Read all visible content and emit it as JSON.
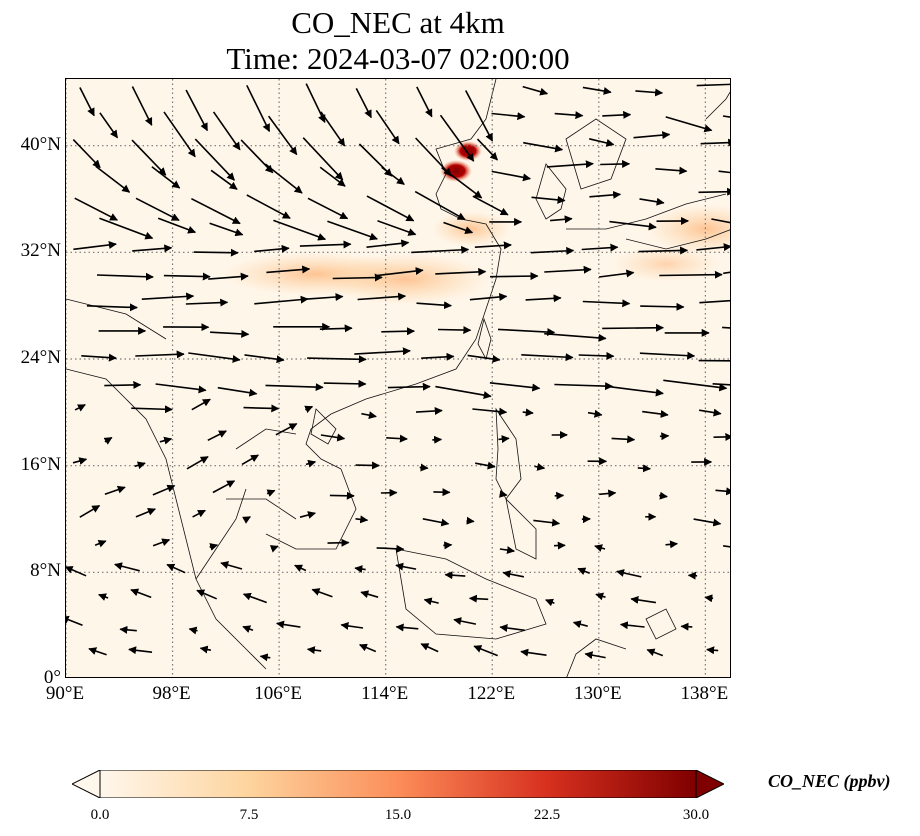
{
  "figure": {
    "title_line1": "CO_NEC at 4km",
    "title_line2": "Time: 2024-03-07 02:00:00"
  },
  "map": {
    "extent": {
      "lon_min": 90,
      "lon_max": 140,
      "lat_min": 0,
      "lat_max": 45
    },
    "gridlines": "dotted gray",
    "lat_ticks": [
      {
        "value": 40,
        "label": "40°N"
      },
      {
        "value": 32,
        "label": "32°N"
      },
      {
        "value": 24,
        "label": "24°N"
      },
      {
        "value": 16,
        "label": "16°N"
      },
      {
        "value": 8,
        "label": "8°N"
      },
      {
        "value": 0,
        "label": "0°"
      }
    ],
    "lon_ticks": [
      {
        "value": 90,
        "label": "90°E"
      },
      {
        "value": 98,
        "label": "98°E"
      },
      {
        "value": 106,
        "label": "106°E"
      },
      {
        "value": 114,
        "label": "114°E"
      },
      {
        "value": 122,
        "label": "122°E"
      },
      {
        "value": 130,
        "label": "130°E"
      },
      {
        "value": 138,
        "label": "138°E"
      }
    ],
    "background_color": "#fff6ea",
    "overlay": "wind vectors (black arrows)"
  },
  "colorbar": {
    "title": "CO_NEC (ppbv)",
    "colormap": "OrRd",
    "min": 0.0,
    "max": 30.0,
    "extend": "both",
    "stops": [
      "#fff7ec",
      "#fdd49e",
      "#fc8d59",
      "#d7301f",
      "#7f0000"
    ],
    "tick_labels": [
      {
        "value": 0.0,
        "label": "0.0"
      },
      {
        "value": 7.5,
        "label": "7.5"
      },
      {
        "value": 15.0,
        "label": "15.0"
      },
      {
        "value": 22.5,
        "label": "22.5"
      },
      {
        "value": 30.0,
        "label": "30.0"
      }
    ]
  }
}
